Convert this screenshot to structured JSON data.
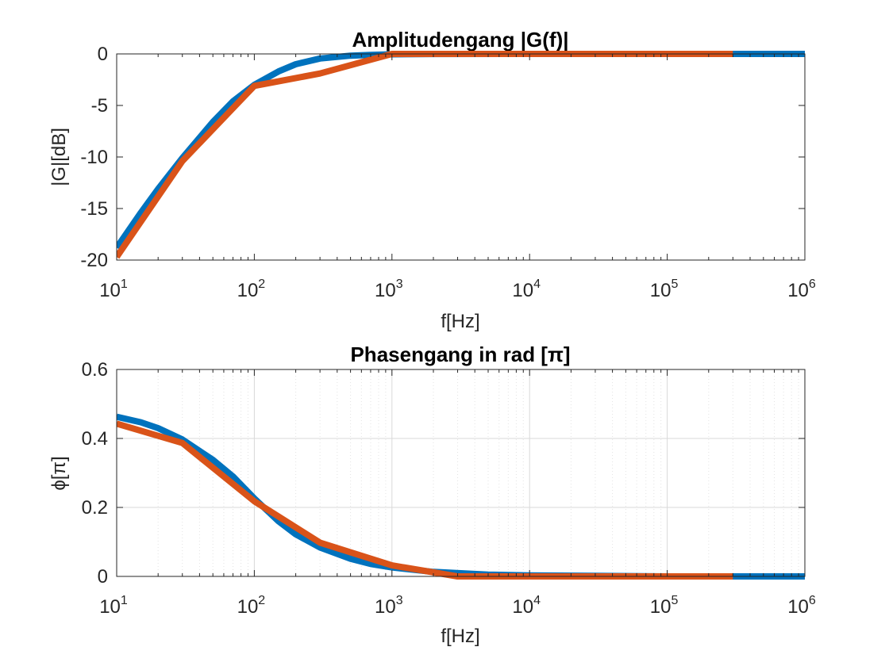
{
  "figure_background": "#ffffff",
  "axes_color": "#262626",
  "grid_color": "#d9d9d9",
  "chart_data": [
    {
      "type": "line",
      "title": "Amplitudengang |G(f)|",
      "xlabel": "f[Hz]",
      "ylabel": "|G|[dB]",
      "xscale": "log",
      "xlim": [
        10,
        1000000
      ],
      "ylim": [
        -20,
        0
      ],
      "xticks": [
        {
          "value": 10,
          "base": "10",
          "exp": "1"
        },
        {
          "value": 100,
          "base": "10",
          "exp": "2"
        },
        {
          "value": 1000,
          "base": "10",
          "exp": "3"
        },
        {
          "value": 10000,
          "base": "10",
          "exp": "4"
        },
        {
          "value": 100000,
          "base": "10",
          "exp": "5"
        },
        {
          "value": 1000000,
          "base": "10",
          "exp": "6"
        }
      ],
      "yticks": [
        {
          "value": 0,
          "label": "0"
        },
        {
          "value": -5,
          "label": "-5"
        },
        {
          "value": -10,
          "label": "-10"
        },
        {
          "value": -15,
          "label": "-15"
        },
        {
          "value": -20,
          "label": "-20"
        }
      ],
      "grid": false,
      "series": [
        {
          "color": "#0072BD",
          "x": [
            10,
            15,
            20,
            30,
            50,
            70,
            100,
            150,
            200,
            300,
            500,
            700,
            1000,
            2000,
            10000,
            100000,
            1000000
          ],
          "y": [
            -18.8,
            -15.4,
            -13.1,
            -10.1,
            -6.6,
            -4.6,
            -3.0,
            -1.7,
            -1.0,
            -0.45,
            -0.17,
            -0.09,
            -0.04,
            -0.01,
            0,
            0,
            0
          ]
        },
        {
          "color": "#D95319",
          "x": [
            10,
            30,
            100,
            300,
            1000,
            3000,
            300000
          ],
          "y": [
            -19.7,
            -10.4,
            -3.1,
            -1.9,
            0,
            0,
            0
          ]
        }
      ]
    },
    {
      "type": "line",
      "title": "Phasengang in rad [π]",
      "xlabel": "f[Hz]",
      "ylabel": "ϕ[π]",
      "xscale": "log",
      "xlim": [
        10,
        1000000
      ],
      "ylim": [
        0,
        0.6
      ],
      "xticks": [
        {
          "value": 10,
          "base": "10",
          "exp": "1"
        },
        {
          "value": 100,
          "base": "10",
          "exp": "2"
        },
        {
          "value": 1000,
          "base": "10",
          "exp": "3"
        },
        {
          "value": 10000,
          "base": "10",
          "exp": "4"
        },
        {
          "value": 100000,
          "base": "10",
          "exp": "5"
        },
        {
          "value": 1000000,
          "base": "10",
          "exp": "6"
        }
      ],
      "yticks": [
        {
          "value": 0,
          "label": "0"
        },
        {
          "value": 0.2,
          "label": "0.2"
        },
        {
          "value": 0.4,
          "label": "0.4"
        },
        {
          "value": 0.6,
          "label": "0.6"
        }
      ],
      "grid": true,
      "series": [
        {
          "color": "#0072BD",
          "x": [
            10,
            15,
            20,
            30,
            50,
            70,
            100,
            150,
            200,
            300,
            500,
            700,
            1000,
            2000,
            5000,
            10000,
            100000,
            1000000
          ],
          "y": [
            0.463,
            0.447,
            0.43,
            0.397,
            0.338,
            0.29,
            0.226,
            0.16,
            0.122,
            0.084,
            0.051,
            0.036,
            0.026,
            0.013,
            0.005,
            0.003,
            0,
            0
          ]
        },
        {
          "color": "#D95319",
          "x": [
            10,
            30,
            100,
            300,
            1000,
            3000,
            300000
          ],
          "y": [
            0.443,
            0.387,
            0.218,
            0.098,
            0.032,
            0,
            0
          ]
        }
      ]
    }
  ]
}
